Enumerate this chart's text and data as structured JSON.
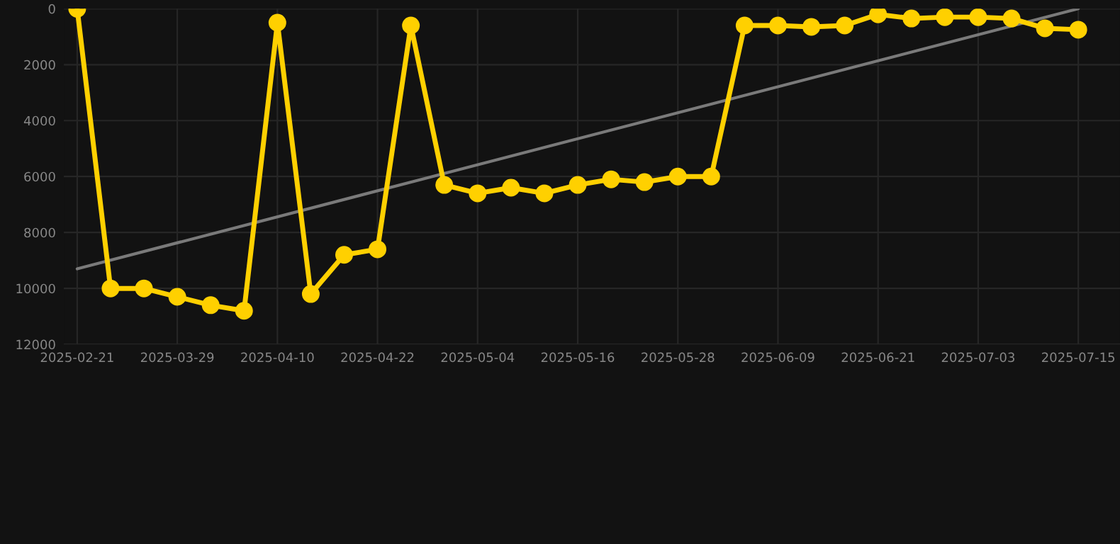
{
  "chart_data": {
    "type": "line",
    "categories": [
      "2025-02-21",
      null,
      null,
      "2025-03-29",
      null,
      null,
      "2025-04-10",
      null,
      null,
      "2025-04-22",
      null,
      null,
      "2025-05-04",
      null,
      null,
      "2025-05-16",
      null,
      null,
      "2025-05-28",
      null,
      null,
      "2025-06-09",
      null,
      null,
      "2025-06-21",
      null,
      null,
      "2025-07-03",
      null,
      null,
      "2025-07-15"
    ],
    "series": [
      {
        "color": "#ffd000",
        "marker": "circle",
        "values": [
          0,
          10000,
          10000,
          10300,
          10600,
          10800,
          500,
          10200,
          8800,
          8600,
          600,
          6300,
          6600,
          6400,
          6600,
          6300,
          6100,
          6200,
          6000,
          6000,
          600,
          600,
          650,
          600,
          200,
          350,
          300,
          300,
          350,
          700,
          750
        ]
      },
      {
        "color": "#7a7a7a",
        "marker": "none",
        "values": [
          9300,
          null,
          null,
          null,
          null,
          null,
          null,
          null,
          null,
          null,
          null,
          null,
          null,
          null,
          null,
          null,
          null,
          null,
          null,
          null,
          null,
          null,
          null,
          null,
          null,
          null,
          null,
          null,
          null,
          null,
          0
        ]
      }
    ],
    "ylim": [
      12000,
      0
    ],
    "yticks": [
      0,
      2000,
      4000,
      6000,
      8000,
      10000,
      12000
    ],
    "grid": true,
    "line_style": "solid"
  }
}
